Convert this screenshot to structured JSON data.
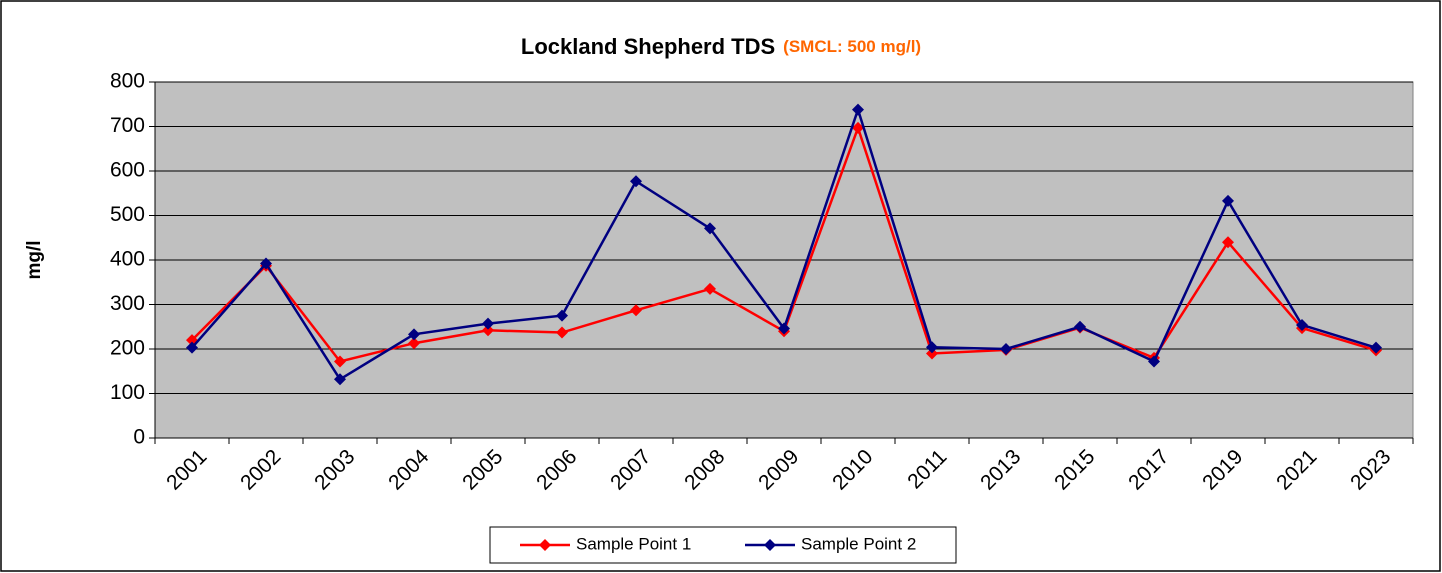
{
  "chart_data": {
    "type": "line",
    "title": "Lockland Shepherd TDS",
    "subtitle": "(SMCL: 500 mg/l)",
    "y_label": "mg/l",
    "categories": [
      "2001",
      "2002",
      "2003",
      "2004",
      "2005",
      "2006",
      "2007",
      "2008",
      "2009",
      "2010",
      "2011",
      "2013",
      "2015",
      "2017",
      "2019",
      "2021",
      "2023"
    ],
    "series": [
      {
        "name": "Sample Point 1",
        "color": "#ff0000",
        "values": [
          220,
          387,
          172,
          213,
          242,
          237,
          287,
          335,
          240,
          697,
          190,
          198,
          248,
          180,
          440,
          247,
          197
        ]
      },
      {
        "name": "Sample Point 2",
        "color": "#000080",
        "values": [
          203,
          392,
          132,
          233,
          257,
          275,
          577,
          471,
          246,
          738,
          204,
          200,
          250,
          172,
          533,
          254,
          203
        ]
      }
    ],
    "ylim": [
      0,
      800
    ],
    "yticks": [
      0,
      100,
      200,
      300,
      400,
      500,
      600,
      700,
      800
    ],
    "grid": true,
    "legend": "bottom"
  }
}
